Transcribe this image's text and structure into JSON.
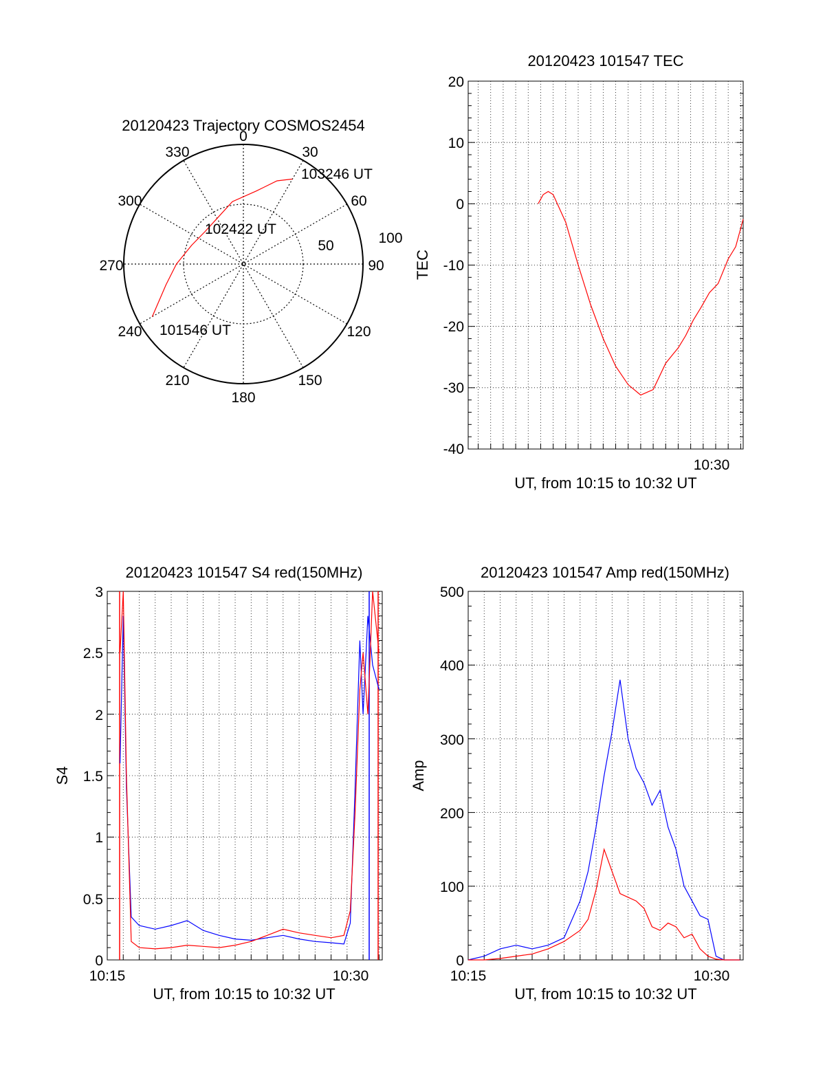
{
  "chart_data": [
    {
      "id": "trajectory",
      "type": "polar",
      "title": "20120423 Trajectory COSMOS2454",
      "angle_labels": [
        "0",
        "30",
        "60",
        "90",
        "120",
        "150",
        "180",
        "210",
        "240",
        "270",
        "300",
        "330"
      ],
      "radius_labels": [
        "50",
        "100"
      ],
      "rlim": [
        0,
        100
      ],
      "series": [
        {
          "color": "#ff0000",
          "points": [
            {
              "azimuth": 240,
              "radius": 88
            },
            {
              "azimuth": 255,
              "radius": 67
            },
            {
              "azimuth": 270,
              "radius": 56
            },
            {
              "azimuth": 290,
              "radius": 46
            },
            {
              "azimuth": 310,
              "radius": 42
            },
            {
              "azimuth": 330,
              "radius": 44
            },
            {
              "azimuth": 350,
              "radius": 53
            },
            {
              "azimuth": 10,
              "radius": 62
            },
            {
              "azimuth": 22,
              "radius": 75
            },
            {
              "azimuth": 30,
              "radius": 82
            }
          ]
        }
      ],
      "annotations": [
        "103246 UT",
        "102422 UT",
        "101546 UT"
      ]
    },
    {
      "id": "tec",
      "type": "line",
      "title": "20120423 101547 TEC",
      "xlabel": "UT, from 10:15 to 10:32 UT",
      "ylabel": "TEC",
      "x_ticks": [
        "10:30"
      ],
      "y_ticks": [
        "20",
        "10",
        "0",
        "-10",
        "-20",
        "-30",
        "-40"
      ],
      "ylim": [
        -40,
        20
      ],
      "xlim_minutes": [
        10.2,
        32.2
      ],
      "grid": true,
      "series": [
        {
          "color": "#ff0000",
          "x_minutes": [
            15.8,
            16.2,
            16.6,
            17.0,
            18.0,
            19.0,
            20.0,
            21.0,
            22.0,
            23.0,
            24.0,
            25.0,
            26.0,
            26.6,
            27.0,
            27.6,
            28.2,
            28.8,
            29.5,
            30.2,
            31.0,
            31.6,
            32.0,
            32.2
          ],
          "values": [
            0,
            1.5,
            2,
            1.5,
            -3,
            -10,
            -16.5,
            -22,
            -26.5,
            -29.5,
            -31.2,
            -30.3,
            -26,
            -24.5,
            -23.5,
            -21.5,
            -19,
            -17,
            -14.5,
            -13,
            -9,
            -7,
            -4,
            -2.5
          ]
        }
      ]
    },
    {
      "id": "s4",
      "type": "line",
      "title": "20120423 101547 S4 red(150MHz)",
      "xlabel": "UT, from 10:15 to 10:32 UT",
      "ylabel": "S4",
      "x_ticks": [
        "10:15",
        "10:30"
      ],
      "y_ticks": [
        "3",
        "2.5",
        "2",
        "1.5",
        "1",
        "0.5",
        "0"
      ],
      "ylim": [
        0,
        3
      ],
      "xlim_minutes": [
        15.0,
        32.2
      ],
      "grid": true,
      "series": [
        {
          "color": "#0000ff",
          "x_minutes": [
            15.8,
            16.0,
            16.2,
            16.5,
            17.0,
            18.0,
            19.0,
            20.0,
            21.0,
            22.0,
            23.0,
            24.0,
            25.0,
            26.0,
            27.0,
            28.0,
            29.0,
            29.8,
            30.2,
            30.5,
            30.8,
            31.0,
            31.3,
            31.6,
            32.0
          ],
          "values": [
            1.6,
            2.8,
            1.4,
            0.35,
            0.28,
            0.25,
            0.28,
            0.32,
            0.24,
            0.2,
            0.17,
            0.16,
            0.18,
            0.2,
            0.17,
            0.15,
            0.14,
            0.13,
            0.3,
            1.4,
            2.6,
            2.0,
            2.8,
            2.4,
            2.2
          ]
        },
        {
          "color": "#ff0000",
          "x_minutes": [
            15.8,
            16.0,
            16.2,
            16.5,
            17.0,
            18.0,
            19.0,
            20.0,
            21.0,
            22.0,
            23.0,
            24.0,
            25.0,
            26.0,
            27.0,
            28.0,
            29.0,
            29.8,
            30.2,
            30.5,
            30.8,
            31.0,
            31.3,
            31.6,
            32.0
          ],
          "values": [
            2.5,
            3.0,
            1.5,
            0.15,
            0.1,
            0.09,
            0.1,
            0.12,
            0.11,
            0.1,
            0.12,
            0.15,
            0.2,
            0.25,
            0.22,
            0.2,
            0.18,
            0.2,
            0.4,
            1.2,
            2.2,
            2.5,
            2.0,
            3.0,
            2.5
          ]
        }
      ]
    },
    {
      "id": "amp",
      "type": "line",
      "title": "20120423 101547 Amp red(150MHz)",
      "xlabel": "UT, from 10:15 to 10:32 UT",
      "ylabel": "Amp",
      "x_ticks": [
        "10:15",
        "10:30"
      ],
      "y_ticks": [
        "500",
        "400",
        "300",
        "200",
        "100",
        "0"
      ],
      "ylim": [
        0,
        500
      ],
      "xlim_minutes": [
        15.0,
        32.2
      ],
      "grid": true,
      "series": [
        {
          "color": "#ff0000",
          "x_minutes": [
            15.0,
            16.0,
            17.0,
            18.0,
            19.0,
            20.0,
            21.0,
            22.0,
            22.5,
            23.0,
            23.5,
            24.0,
            24.5,
            25.0,
            25.5,
            26.0,
            26.5,
            27.0,
            27.5,
            28.0,
            28.5,
            29.0,
            29.5,
            30.0,
            30.5,
            31.0,
            32.0
          ],
          "values": [
            0,
            0,
            2,
            5,
            8,
            15,
            25,
            40,
            55,
            95,
            150,
            120,
            90,
            85,
            80,
            70,
            45,
            40,
            50,
            45,
            30,
            35,
            15,
            5,
            1,
            0,
            0
          ]
        },
        {
          "color": "#0000ff",
          "x_minutes": [
            15.0,
            16.0,
            17.0,
            18.0,
            19.0,
            20.0,
            21.0,
            22.0,
            22.5,
            23.0,
            23.5,
            24.0,
            24.5,
            25.0,
            25.5,
            26.0,
            26.5,
            27.0,
            27.5,
            28.0,
            28.5,
            29.0,
            29.5,
            30.0,
            30.5,
            31.0,
            32.0
          ],
          "values": [
            0,
            5,
            15,
            20,
            15,
            20,
            30,
            80,
            120,
            180,
            250,
            310,
            380,
            300,
            260,
            240,
            210,
            230,
            180,
            150,
            100,
            80,
            60,
            55,
            5,
            0,
            0
          ]
        }
      ]
    }
  ]
}
